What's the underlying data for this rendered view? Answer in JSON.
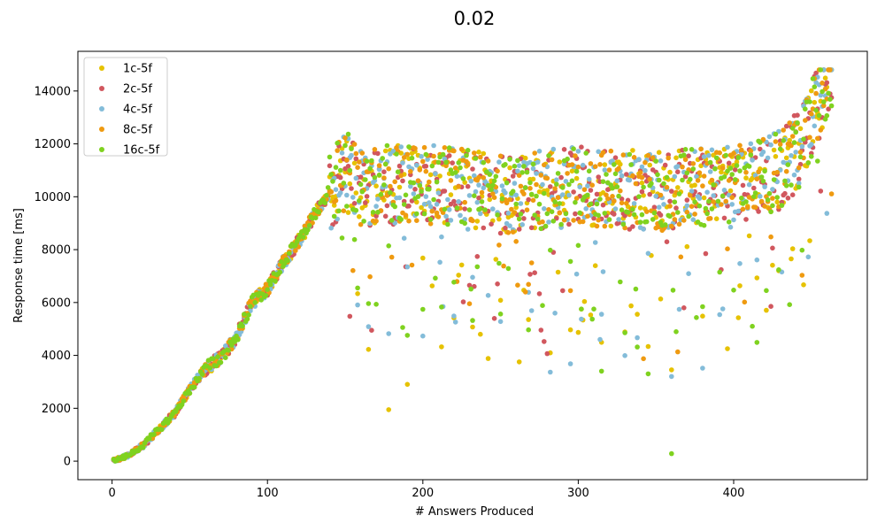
{
  "chart_data": {
    "type": "scatter",
    "title": "0.02",
    "xlabel": "# Answers Produced",
    "ylabel": "Response time [ms]",
    "xlim": [
      -22,
      486
    ],
    "ylim": [
      -700,
      15500
    ],
    "xticks": [
      0,
      100,
      200,
      300,
      400
    ],
    "yticks": [
      0,
      2000,
      4000,
      6000,
      8000,
      10000,
      12000,
      14000
    ],
    "legend": {
      "placement": "top-left"
    },
    "grid": false,
    "n_points": 463,
    "series": [
      {
        "name": "1c-5f",
        "color": "#e6c200"
      },
      {
        "name": "2c-5f",
        "color": "#d1575e"
      },
      {
        "name": "4c-5f",
        "color": "#83bcd9"
      },
      {
        "name": "8c-5f",
        "color": "#ef9a10"
      },
      {
        "name": "16c-5f",
        "color": "#7fd21f"
      }
    ],
    "trend_anchors": {
      "x": [
        0,
        10,
        20,
        30,
        40,
        50,
        60,
        70,
        80,
        90,
        100,
        110,
        120,
        130,
        140,
        150,
        160,
        200,
        250,
        300,
        350,
        400,
        430,
        445,
        462
      ],
      "y": [
        0,
        200,
        600,
        1200,
        1800,
        2700,
        3500,
        3900,
        4700,
        6000,
        6500,
        7500,
        8300,
        9300,
        10200,
        11000,
        10400,
        10500,
        10100,
        10400,
        10200,
        10500,
        11000,
        12000,
        14800
      ]
    },
    "dip_x": [
      158,
      165,
      178,
      190,
      200,
      212,
      220,
      232,
      250,
      268,
      282,
      295,
      302,
      315,
      330,
      338,
      345,
      360,
      380,
      415
    ]
  }
}
